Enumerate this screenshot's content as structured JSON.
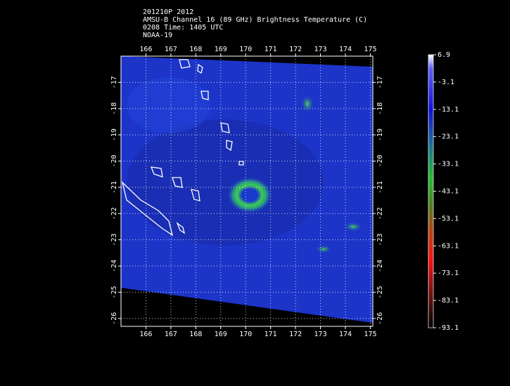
{
  "header": {
    "lines": [
      "201210P 2012",
      "AMSU-B Channel 16 (89 GHz) Brightness Temperature (C)",
      "0208 Time: 1405 UTC",
      "NOAA-19"
    ]
  },
  "map": {
    "xlim": [
      165,
      175.1
    ],
    "ylim": [
      -26.3,
      -16
    ],
    "lon_ticks": [
      166,
      167,
      168,
      169,
      170,
      171,
      172,
      173,
      174,
      175
    ],
    "lat_ticks": [
      -17,
      -18,
      -19,
      -20,
      -21,
      -22,
      -23,
      -24,
      -25,
      -26
    ]
  },
  "colorbar": {
    "lim": [
      -93.1,
      6.9
    ],
    "ticks": [
      6.9,
      -3.1,
      -13.1,
      -23.1,
      -33.1,
      -43.1,
      -53.1,
      -63.1,
      -73.1,
      -83.1,
      -93.1
    ]
  }
}
